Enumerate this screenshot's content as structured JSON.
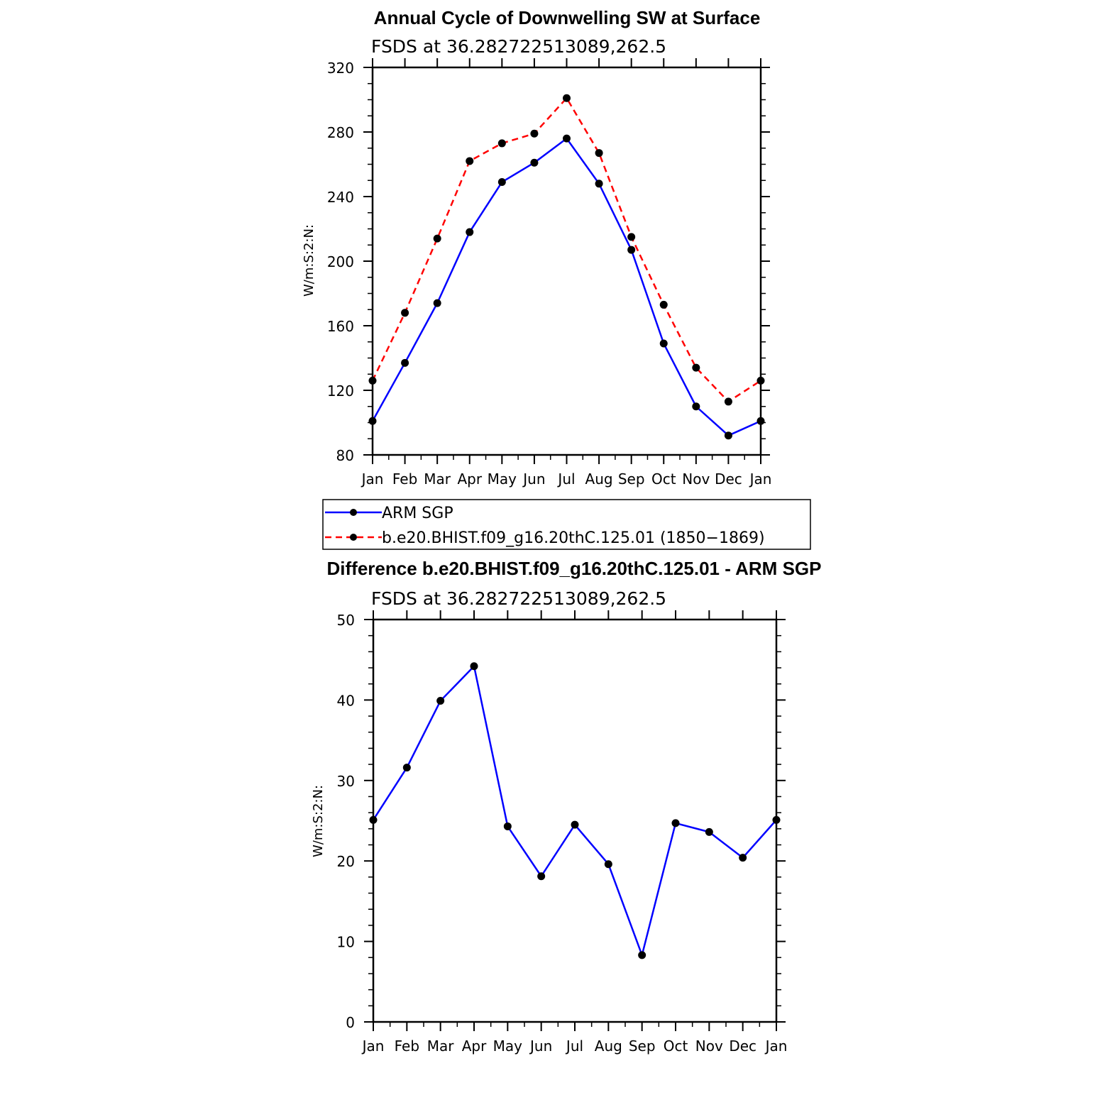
{
  "chart_data": [
    {
      "type": "line",
      "title": "Annual Cycle of Downwelling SW at Surface",
      "subtitle": "FSDS at 36.282722513089,262.5",
      "xlabel": "",
      "ylabel": "W/m:S:2:N:",
      "categories": [
        "Jan",
        "Feb",
        "Mar",
        "Apr",
        "May",
        "Jun",
        "Jul",
        "Aug",
        "Sep",
        "Oct",
        "Nov",
        "Dec",
        "Jan"
      ],
      "ylim": [
        80,
        320
      ],
      "yticks": [
        80,
        120,
        160,
        200,
        240,
        280,
        320
      ],
      "series": [
        {
          "name": "ARM SGP",
          "color": "#0000ff",
          "style": "solid",
          "values": [
            101,
            137,
            174,
            218,
            249,
            261,
            276,
            248,
            207,
            149,
            110,
            92,
            101
          ]
        },
        {
          "name": "b.e20.BHIST.f09_g16.20thC.125.01 (1850−1869)",
          "color": "#ff0000",
          "style": "dashed",
          "values": [
            126,
            168,
            214,
            262,
            273,
            279,
            301,
            267,
            215,
            173,
            134,
            113,
            126
          ]
        }
      ],
      "legend": "below"
    },
    {
      "type": "line",
      "title": "Difference b.e20.BHIST.f09_g16.20thC.125.01 - ARM SGP",
      "subtitle": "FSDS at 36.282722513089,262.5",
      "xlabel": "",
      "ylabel": "W/m:S:2:N:",
      "categories": [
        "Jan",
        "Feb",
        "Mar",
        "Apr",
        "May",
        "Jun",
        "Jul",
        "Aug",
        "Sep",
        "Oct",
        "Nov",
        "Dec",
        "Jan"
      ],
      "ylim": [
        0,
        50
      ],
      "yticks": [
        0,
        10,
        20,
        30,
        40,
        50
      ],
      "series": [
        {
          "name": "Difference",
          "color": "#0000ff",
          "style": "solid",
          "values": [
            25.1,
            31.6,
            39.9,
            44.2,
            24.3,
            18.1,
            24.5,
            19.6,
            8.3,
            24.7,
            23.6,
            20.4,
            25.1
          ]
        }
      ]
    }
  ]
}
